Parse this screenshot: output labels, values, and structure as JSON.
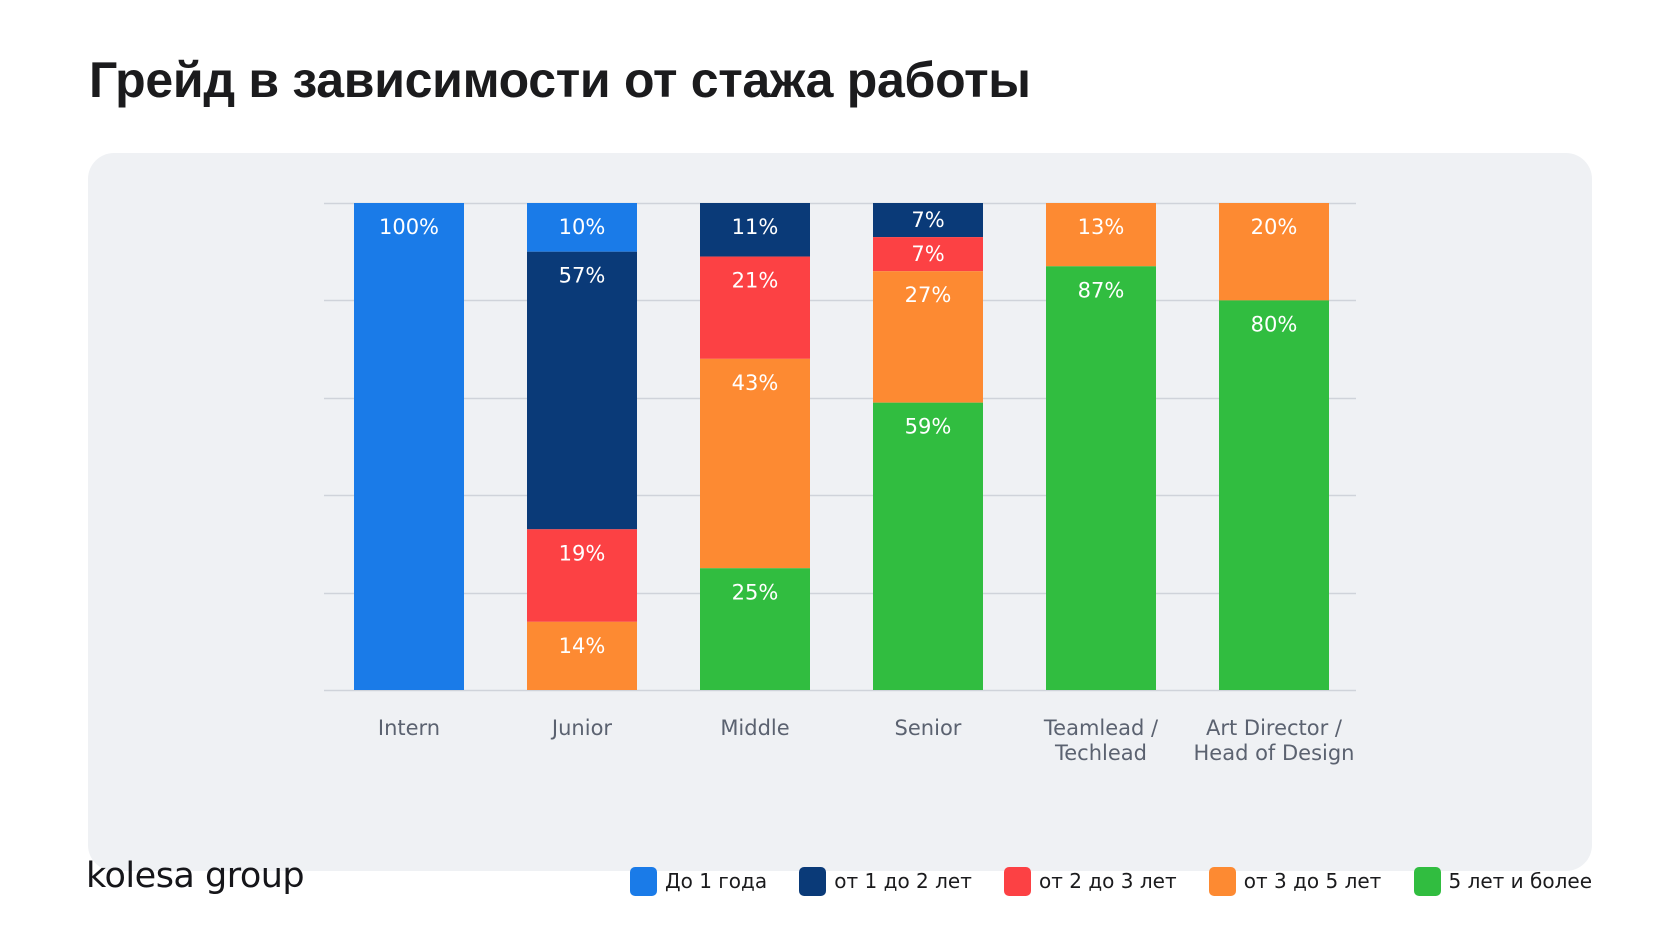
{
  "title": "Грейд в зависимости от стажа работы",
  "logo": "kolesa group",
  "chart_data": {
    "type": "bar",
    "stacked": true,
    "orientation": "vertical",
    "title": "Грейд в зависимости от стажа работы",
    "xlabel": "",
    "ylabel": "",
    "ylim": [
      0,
      100
    ],
    "y_unit": "%",
    "grid": true,
    "y_gridlines": [
      0,
      20,
      40,
      60,
      80,
      100
    ],
    "legend_position": "bottom-right",
    "categories": [
      "Intern",
      "Junior",
      "Middle",
      "Senior",
      "Teamlead /\nTechlead",
      "Art Director /\nHead of Design"
    ],
    "series": [
      {
        "name": "До 1 года",
        "color": "#1a7be8",
        "values": [
          100,
          10,
          0,
          0,
          0,
          0
        ]
      },
      {
        "name": "от 1 до 2 лет",
        "color": "#0a3a78",
        "values": [
          0,
          57,
          11,
          7,
          0,
          0
        ]
      },
      {
        "name": "от 2 до 3 лет",
        "color": "#fc4144",
        "values": [
          0,
          19,
          21,
          7,
          0,
          0
        ]
      },
      {
        "name": "от 3 до 5 лет",
        "color": "#fd8a32",
        "values": [
          0,
          14,
          43,
          27,
          13,
          20
        ]
      },
      {
        "name": "5 лет и более",
        "color": "#31bd40",
        "values": [
          0,
          0,
          25,
          59,
          87,
          80
        ]
      }
    ]
  }
}
